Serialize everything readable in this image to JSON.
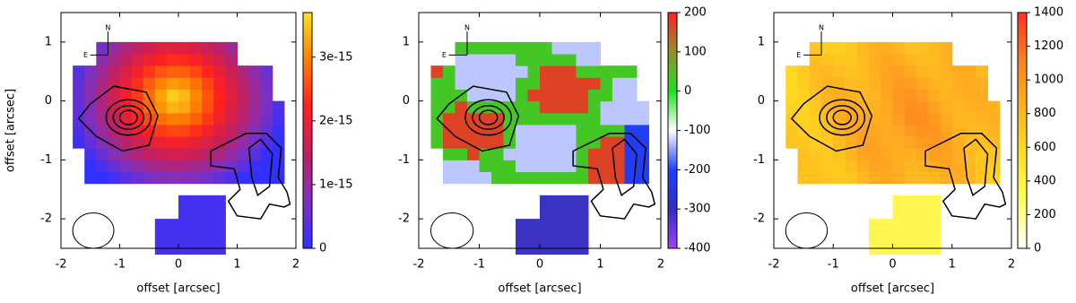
{
  "chart_data": [
    {
      "type": "heatmap",
      "xlabel": "offset [arcsec]",
      "ylabel": "offset [arcsec]",
      "xlim": [
        -2,
        2
      ],
      "ylim": [
        -2.5,
        1.5
      ],
      "xticks": [
        -2,
        -1,
        0,
        1,
        2
      ],
      "yticks": [
        -2,
        -1,
        0,
        1
      ],
      "clim": [
        0,
        3.7e-15
      ],
      "cticks": [
        0,
        1e-15,
        2e-15,
        3e-15
      ],
      "colormap": [
        "#3030ff",
        "#8030c0",
        "#c02060",
        "#ff2020",
        "#ff8000",
        "#ffe020"
      ],
      "north_label": "N",
      "east_label": "E"
    },
    {
      "type": "heatmap",
      "xlabel": "offset [arcsec]",
      "xlim": [
        -2,
        2
      ],
      "ylim": [
        -2.5,
        1.5
      ],
      "xticks": [
        -2,
        -1,
        0,
        1,
        2
      ],
      "yticks": [
        -2,
        -1,
        0,
        1
      ],
      "clim": [
        -400,
        200
      ],
      "cticks": [
        -400,
        -300,
        -200,
        -100,
        0,
        100,
        200
      ],
      "colormap": [
        "#a040ff",
        "#3030c0",
        "#2040ff",
        "#ffffff",
        "#20e020",
        "#909030",
        "#ff2020"
      ],
      "north_label": "N",
      "east_label": "E"
    },
    {
      "type": "heatmap",
      "xlabel": "offset [arcsec]",
      "xlim": [
        -2,
        2
      ],
      "ylim": [
        -2.5,
        1.5
      ],
      "xticks": [
        -2,
        -1,
        0,
        1,
        2
      ],
      "yticks": [
        -2,
        -1,
        0,
        1
      ],
      "clim": [
        0,
        1400
      ],
      "cticks": [
        0,
        200,
        400,
        600,
        800,
        1000,
        1200,
        1400
      ],
      "colormap": [
        "#ffffff",
        "#ffff60",
        "#ffe020",
        "#ffb020",
        "#ff8020",
        "#ff3020"
      ],
      "north_label": "N",
      "east_label": "E"
    }
  ]
}
